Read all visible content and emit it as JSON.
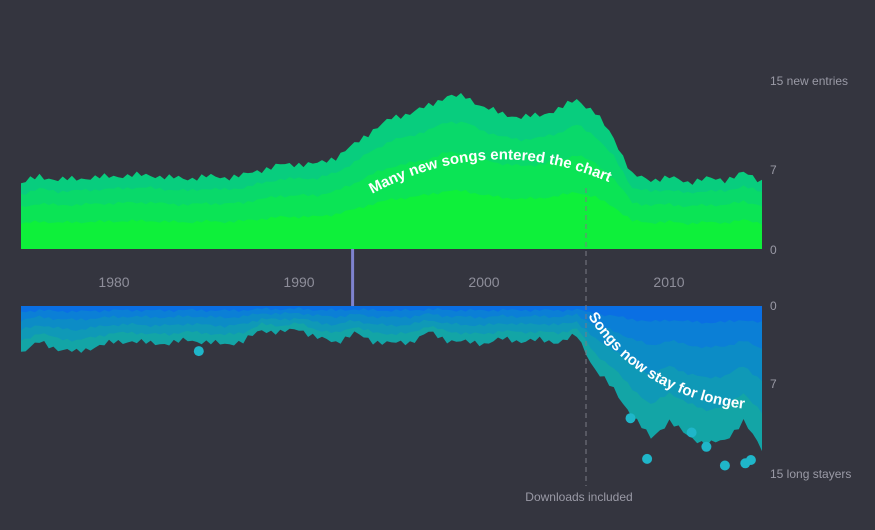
{
  "chart_data": {
    "type": "area",
    "title": "",
    "x_range": [
      1975,
      2015
    ],
    "x_ticks": [
      {
        "value": 1980,
        "label": "1980"
      },
      {
        "value": 1990,
        "label": "1990"
      },
      {
        "value": 2000,
        "label": "2000"
      },
      {
        "value": 2010,
        "label": "2010"
      }
    ],
    "top_panel": {
      "y_range": [
        0,
        15
      ],
      "ticks": [
        {
          "value": 15,
          "label": "15 new entries"
        },
        {
          "value": 7,
          "label": "7"
        },
        {
          "value": 0,
          "label": "0"
        }
      ],
      "annotation": "Many new songs entered the chart",
      "layer_colors": [
        "#0ef03a",
        "#0be455",
        "#09d96a",
        "#08cd7e"
      ],
      "x": [
        1975,
        1976,
        1977,
        1978,
        1979,
        1980,
        1981,
        1982,
        1983,
        1984,
        1985,
        1986,
        1987,
        1988,
        1989,
        1990,
        1991,
        1992,
        1993,
        1994,
        1995,
        1996,
        1997,
        1998,
        1999,
        2000,
        2001,
        2002,
        2003,
        2004,
        2005,
        2006,
        2007,
        2008,
        2009,
        2010,
        2011,
        2012,
        2013,
        2014,
        2015
      ],
      "values": [
        5.8,
        6.4,
        6.1,
        6.2,
        6.3,
        6.4,
        6.5,
        6.5,
        6.3,
        6.2,
        6.4,
        6.3,
        6.5,
        7.0,
        7.4,
        7.5,
        7.5,
        8.1,
        9.2,
        10.5,
        11.5,
        12.0,
        12.6,
        13.5,
        13.4,
        12.5,
        11.9,
        11.6,
        11.8,
        12.3,
        13.2,
        12.0,
        9.8,
        6.5,
        6.1,
        6.3,
        5.9,
        6.2,
        6.1,
        6.7,
        6.0
      ],
      "layer_shares": [
        0.38,
        0.25,
        0.2,
        0.17
      ]
    },
    "bottom_panel": {
      "y_range": [
        0,
        15
      ],
      "inverted": true,
      "ticks": [
        {
          "value": 0,
          "label": "0"
        },
        {
          "value": 7,
          "label": "7"
        },
        {
          "value": 15,
          "label": "15 long stayers"
        }
      ],
      "annotation": "Songs now stay for longer",
      "layer_colors": [
        "#0a6fe3",
        "#0b7fd6",
        "#0c8cc6",
        "#0f99b7",
        "#13a5a6"
      ],
      "x": [
        1975,
        1976,
        1977,
        1978,
        1979,
        1980,
        1981,
        1982,
        1983,
        1984,
        1985,
        1986,
        1987,
        1988,
        1989,
        1990,
        1991,
        1992,
        1993,
        1994,
        1995,
        1996,
        1997,
        1998,
        1999,
        2000,
        2001,
        2002,
        2003,
        2004,
        2005,
        2006,
        2007,
        2008,
        2009,
        2010,
        2011,
        2012,
        2013,
        2014,
        2015
      ],
      "values": [
        4.2,
        3.3,
        3.9,
        4.2,
        3.7,
        3.3,
        3.2,
        3.4,
        3.4,
        3.1,
        3.3,
        3.5,
        3.2,
        2.2,
        2.4,
        2.1,
        2.9,
        3.3,
        2.5,
        3.2,
        3.4,
        3.3,
        2.4,
        3.1,
        3.3,
        3.4,
        3.0,
        3.2,
        3.1,
        3.3,
        2.7,
        5.8,
        7.6,
        10.0,
        12.0,
        10.5,
        11.8,
        12.6,
        12.2,
        10.5,
        13.0
      ],
      "layer_shares": [
        0.12,
        0.18,
        0.22,
        0.23,
        0.25
      ],
      "outlier_points": [
        {
          "x": 1984.6,
          "y": 4.1
        },
        {
          "x": 2007.9,
          "y": 10.2
        },
        {
          "x": 2008.8,
          "y": 13.9
        },
        {
          "x": 2011.2,
          "y": 11.5
        },
        {
          "x": 2012.0,
          "y": 12.8
        },
        {
          "x": 2013.0,
          "y": 14.5
        },
        {
          "x": 2014.1,
          "y": 14.3
        },
        {
          "x": 2014.4,
          "y": 14.0
        }
      ]
    },
    "markers": [
      {
        "x": 1992.9,
        "style": "solid",
        "label": ""
      },
      {
        "x": 2005.5,
        "style": "dashed",
        "label": "Downloads included"
      }
    ]
  }
}
